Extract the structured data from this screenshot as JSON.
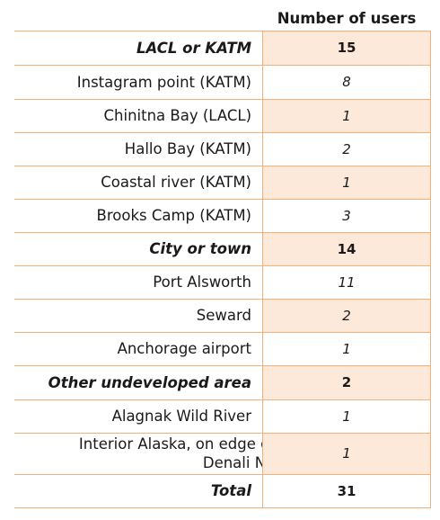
{
  "header": {
    "column_label": "Number of users"
  },
  "rows": [
    {
      "label": "LACL or KATM",
      "value": "15",
      "bold": true,
      "shaded": true
    },
    {
      "label": "Instagram point (KATM)",
      "value": "8",
      "bold": false,
      "italic": true,
      "shaded": false
    },
    {
      "label": "Chinitna Bay (LACL)",
      "value": "1",
      "bold": false,
      "italic": true,
      "shaded": true
    },
    {
      "label": "Hallo Bay (KATM)",
      "value": "2",
      "bold": false,
      "italic": true,
      "shaded": false
    },
    {
      "label": "Coastal river (KATM)",
      "value": "1",
      "bold": false,
      "italic": true,
      "shaded": true
    },
    {
      "label": "Brooks Camp (KATM)",
      "value": "3",
      "bold": false,
      "italic": true,
      "shaded": false
    },
    {
      "label": "City or town",
      "value": "14",
      "bold": true,
      "shaded": true
    },
    {
      "label": "Port Alsworth",
      "value": "11",
      "bold": false,
      "italic": true,
      "shaded": false
    },
    {
      "label": "Seward",
      "value": "2",
      "bold": false,
      "italic": true,
      "shaded": true
    },
    {
      "label": "Anchorage airport",
      "value": "1",
      "bold": false,
      "italic": true,
      "shaded": false
    },
    {
      "label": "Other undeveloped area",
      "value": "2",
      "bold": true,
      "shaded": true
    },
    {
      "label": "Alagnak Wild River",
      "value": "1",
      "bold": false,
      "italic": true,
      "shaded": false
    },
    {
      "label": "Interior Alaska, on edge of Denali NP",
      "value": "1",
      "bold": false,
      "italic": true,
      "shaded": true
    },
    {
      "label": "Total",
      "value": "31",
      "bold": true,
      "shaded": false
    }
  ],
  "colors": {
    "border": "#f3b07a",
    "shade": "#fde9d9"
  }
}
